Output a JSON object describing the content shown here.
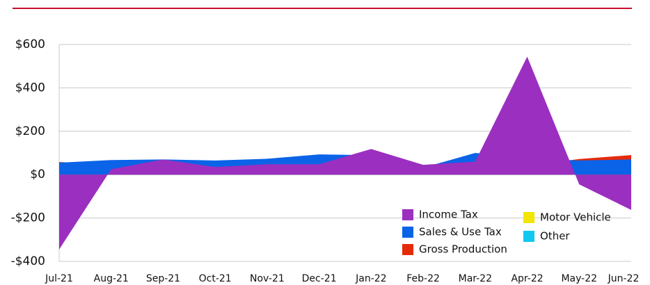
{
  "chart_data": {
    "type": "area",
    "categories": [
      "Jul-21",
      "Aug-21",
      "Sep-21",
      "Oct-21",
      "Nov-21",
      "Dec-21",
      "Jan-22",
      "Feb-22",
      "Mar-22",
      "Apr-22",
      "May-22",
      "Jun-22"
    ],
    "series": [
      {
        "name": "Income Tax",
        "color": "#9b2fc0",
        "values": [
          -345,
          25,
          70,
          35,
          48,
          48,
          118,
          45,
          60,
          544,
          -45,
          -163
        ]
      },
      {
        "name": "Sales & Use Tax",
        "color": "#0b63e8",
        "values": [
          55,
          67,
          70,
          65,
          73,
          93,
          90,
          32,
          100,
          75,
          65,
          70
        ]
      },
      {
        "name": "Gross Production",
        "color": "#e52a0a",
        "values": [
          58,
          48,
          55,
          42,
          48,
          73,
          60,
          40,
          45,
          40,
          72,
          90
        ]
      },
      {
        "name": "Motor Vehicle",
        "color": "#f2e600",
        "values": [
          5,
          12,
          10,
          6,
          8,
          6,
          8,
          6,
          5,
          3,
          5,
          2
        ]
      },
      {
        "name": "Other",
        "color": "#12c8f0",
        "values": [
          4,
          6,
          8,
          3,
          6,
          8,
          18,
          8,
          4,
          3,
          4,
          3
        ]
      }
    ],
    "ylim": [
      -400,
      600
    ],
    "yticks": [
      {
        "value": -400,
        "label": "-$400"
      },
      {
        "value": -200,
        "label": "-$200"
      },
      {
        "value": 0,
        "label": "$0"
      },
      {
        "value": 200,
        "label": "$200"
      },
      {
        "value": 400,
        "label": "$400"
      },
      {
        "value": 600,
        "label": "$600"
      }
    ],
    "grid": true
  }
}
